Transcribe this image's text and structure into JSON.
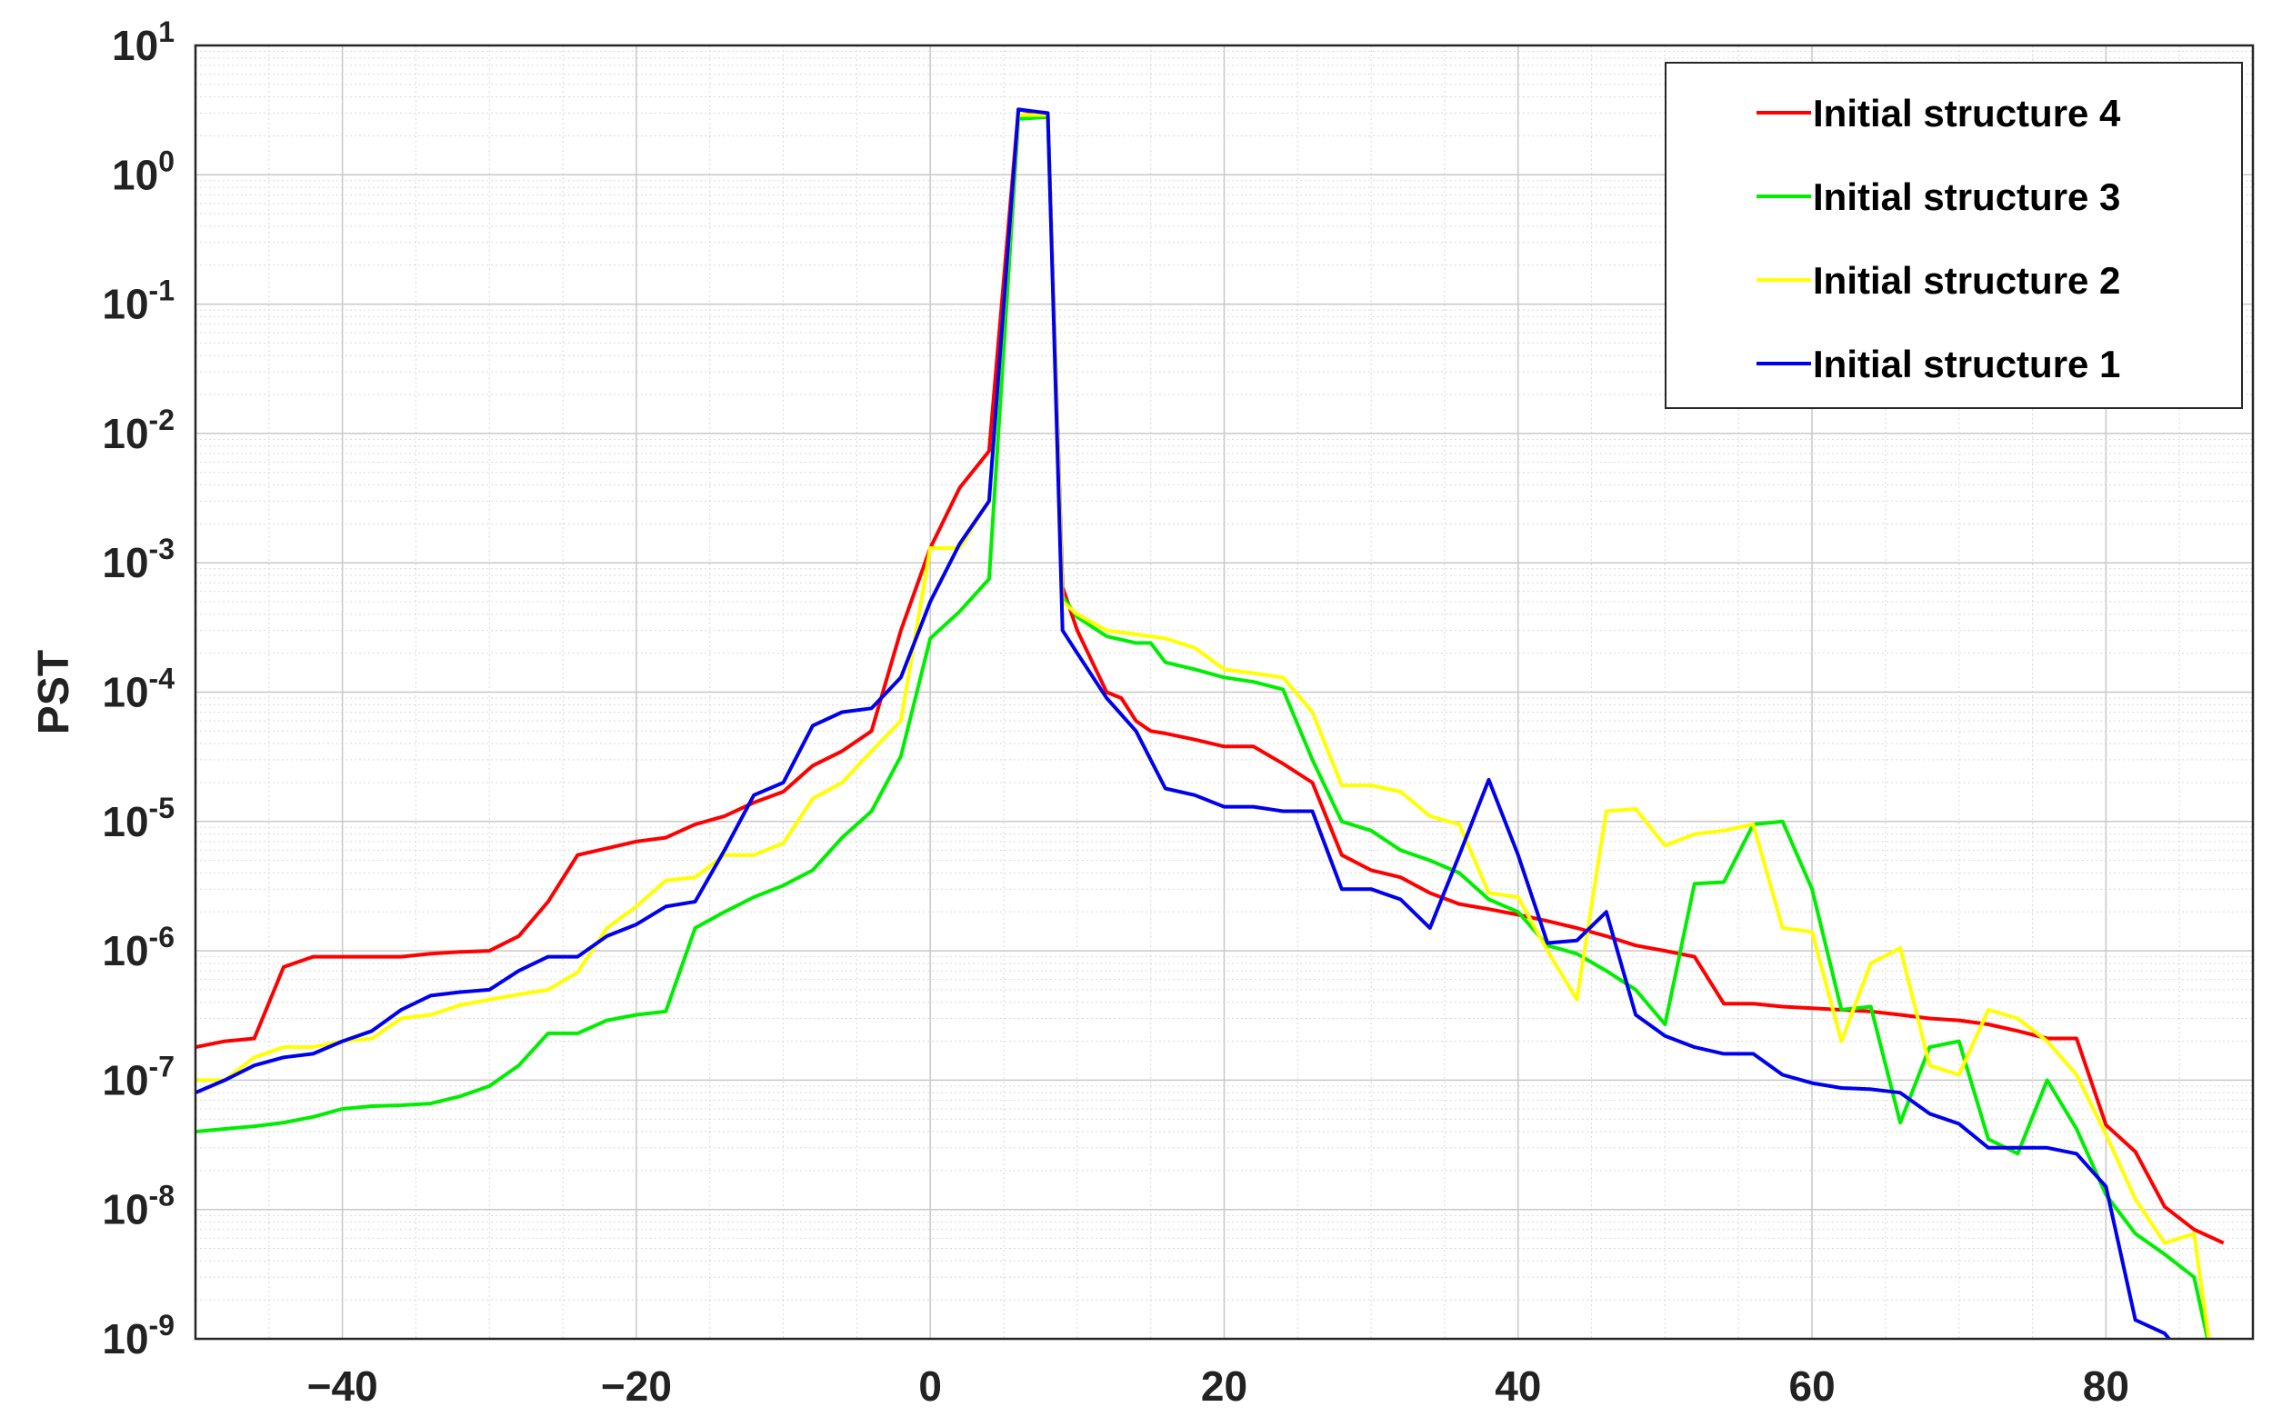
{
  "chart_data": {
    "type": "line",
    "title": "",
    "xlabel": "",
    "ylabel": "PST",
    "xlim": [
      -50,
      90
    ],
    "ylim": [
      1e-09,
      10
    ],
    "yscale": "log",
    "grid": true,
    "minor_grid": true,
    "legend_position": "top-right",
    "x_ticks": [
      -40,
      -20,
      0,
      20,
      40,
      60,
      80
    ],
    "x_tick_labels": [
      "−40",
      "−20",
      "0",
      "20",
      "40",
      "60",
      "80"
    ],
    "y_ticks": [
      1,
      0,
      -1,
      -2,
      -3,
      -4,
      -5,
      -6,
      -7,
      -8,
      -9
    ],
    "y_tick_base": "10",
    "y_tick_exponents": [
      "1",
      "0",
      "-1",
      "-2",
      "-3",
      "-4",
      "-5",
      "-6",
      "-7",
      "-8",
      "-9"
    ],
    "series": [
      {
        "name": "Initial structure 4",
        "color": "#ff0000",
        "points": [
          [
            -50,
            1.8e-07
          ],
          [
            -48,
            2e-07
          ],
          [
            -46,
            2.1e-07
          ],
          [
            -44,
            7.5e-07
          ],
          [
            -42,
            9e-07
          ],
          [
            -40,
            9e-07
          ],
          [
            -38,
            9e-07
          ],
          [
            -36,
            9e-07
          ],
          [
            -34,
            9.5e-07
          ],
          [
            -32,
            9.8e-07
          ],
          [
            -30,
            1e-06
          ],
          [
            -28,
            1.3e-06
          ],
          [
            -26,
            2.4e-06
          ],
          [
            -24,
            5.5e-06
          ],
          [
            -22,
            6.2e-06
          ],
          [
            -20,
            7e-06
          ],
          [
            -18,
            7.5e-06
          ],
          [
            -16,
            9.5e-06
          ],
          [
            -14,
            1.1e-05
          ],
          [
            -12,
            1.4e-05
          ],
          [
            -10,
            1.7e-05
          ],
          [
            -8,
            2.7e-05
          ],
          [
            -6,
            3.5e-05
          ],
          [
            -4,
            5e-05
          ],
          [
            -2,
            0.0003
          ],
          [
            0,
            0.0013
          ],
          [
            2,
            0.0038
          ],
          [
            4,
            0.0073
          ],
          [
            6,
            3.2
          ],
          [
            8,
            2.9
          ],
          [
            9,
            0.00065
          ],
          [
            10,
            0.0003
          ],
          [
            12,
            0.0001
          ],
          [
            13,
            9e-05
          ],
          [
            14,
            6e-05
          ],
          [
            15,
            5e-05
          ],
          [
            16,
            4.8e-05
          ],
          [
            18,
            4.3e-05
          ],
          [
            20,
            3.8e-05
          ],
          [
            22,
            3.8e-05
          ],
          [
            24,
            2.8e-05
          ],
          [
            26,
            2e-05
          ],
          [
            28,
            5.5e-06
          ],
          [
            30,
            4.2e-06
          ],
          [
            32,
            3.7e-06
          ],
          [
            34,
            2.8e-06
          ],
          [
            36,
            2.3e-06
          ],
          [
            38,
            2.1e-06
          ],
          [
            40,
            1.9e-06
          ],
          [
            42,
            1.7e-06
          ],
          [
            44,
            1.5e-06
          ],
          [
            46,
            1.3e-06
          ],
          [
            48,
            1.1e-06
          ],
          [
            50,
            1e-06
          ],
          [
            52,
            9e-07
          ],
          [
            54,
            3.9e-07
          ],
          [
            56,
            3.9e-07
          ],
          [
            58,
            3.7e-07
          ],
          [
            60,
            3.6e-07
          ],
          [
            62,
            3.5e-07
          ],
          [
            64,
            3.4e-07
          ],
          [
            66,
            3.2e-07
          ],
          [
            68,
            3e-07
          ],
          [
            70,
            2.9e-07
          ],
          [
            72,
            2.7e-07
          ],
          [
            74,
            2.4e-07
          ],
          [
            76,
            2.1e-07
          ],
          [
            78,
            2.1e-07
          ],
          [
            80,
            4.5e-08
          ],
          [
            82,
            2.8e-08
          ],
          [
            84,
            1.05e-08
          ],
          [
            86,
            7e-09
          ],
          [
            88,
            5.5e-09
          ]
        ]
      },
      {
        "name": "Initial structure 3",
        "color": "#00ee00",
        "points": [
          [
            -50,
            4e-08
          ],
          [
            -48,
            4.2e-08
          ],
          [
            -46,
            4.4e-08
          ],
          [
            -44,
            4.7e-08
          ],
          [
            -42,
            5.2e-08
          ],
          [
            -40,
            6e-08
          ],
          [
            -38,
            6.3e-08
          ],
          [
            -36,
            6.4e-08
          ],
          [
            -34,
            6.6e-08
          ],
          [
            -32,
            7.5e-08
          ],
          [
            -30,
            9e-08
          ],
          [
            -28,
            1.3e-07
          ],
          [
            -26,
            2.3e-07
          ],
          [
            -24,
            2.3e-07
          ],
          [
            -22,
            2.9e-07
          ],
          [
            -20,
            3.2e-07
          ],
          [
            -18,
            3.4e-07
          ],
          [
            -16,
            1.5e-06
          ],
          [
            -14,
            2e-06
          ],
          [
            -12,
            2.6e-06
          ],
          [
            -10,
            3.2e-06
          ],
          [
            -8,
            4.2e-06
          ],
          [
            -6,
            7.5e-06
          ],
          [
            -4,
            1.2e-05
          ],
          [
            -2,
            3.2e-05
          ],
          [
            0,
            0.00026
          ],
          [
            2,
            0.00042
          ],
          [
            4,
            0.00075
          ],
          [
            6,
            2.7
          ],
          [
            8,
            2.8
          ],
          [
            9,
            0.00055
          ],
          [
            10,
            0.00038
          ],
          [
            12,
            0.00027
          ],
          [
            14,
            0.00024
          ],
          [
            15,
            0.00024
          ],
          [
            16,
            0.00017
          ],
          [
            18,
            0.00015
          ],
          [
            20,
            0.00013
          ],
          [
            22,
            0.00012
          ],
          [
            24,
            0.000105
          ],
          [
            26,
            3e-05
          ],
          [
            28,
            1e-05
          ],
          [
            30,
            8.5e-06
          ],
          [
            32,
            6e-06
          ],
          [
            34,
            5e-06
          ],
          [
            36,
            4e-06
          ],
          [
            38,
            2.5e-06
          ],
          [
            40,
            2e-06
          ],
          [
            42,
            1.1e-06
          ],
          [
            44,
            9.5e-07
          ],
          [
            46,
            7e-07
          ],
          [
            48,
            5e-07
          ],
          [
            50,
            2.7e-07
          ],
          [
            52,
            3.3e-06
          ],
          [
            54,
            3.4e-06
          ],
          [
            56,
            9.5e-06
          ],
          [
            58,
            1e-05
          ],
          [
            60,
            3e-06
          ],
          [
            62,
            3.5e-07
          ],
          [
            64,
            3.7e-07
          ],
          [
            66,
            4.7e-08
          ],
          [
            68,
            1.8e-07
          ],
          [
            70,
            2e-07
          ],
          [
            72,
            3.5e-08
          ],
          [
            74,
            2.7e-08
          ],
          [
            76,
            1e-07
          ],
          [
            78,
            4.2e-08
          ],
          [
            80,
            1.3e-08
          ],
          [
            82,
            6.5e-09
          ],
          [
            84,
            4.5e-09
          ],
          [
            86,
            3e-09
          ],
          [
            87,
            9e-10
          ]
        ]
      },
      {
        "name": "Initial structure 2",
        "color": "#ffff00",
        "points": [
          [
            -50,
            1e-07
          ],
          [
            -48,
            1e-07
          ],
          [
            -46,
            1.5e-07
          ],
          [
            -44,
            1.8e-07
          ],
          [
            -42,
            1.8e-07
          ],
          [
            -40,
            2e-07
          ],
          [
            -38,
            2.1e-07
          ],
          [
            -36,
            3e-07
          ],
          [
            -34,
            3.2e-07
          ],
          [
            -32,
            3.8e-07
          ],
          [
            -30,
            4.2e-07
          ],
          [
            -28,
            4.6e-07
          ],
          [
            -26,
            5e-07
          ],
          [
            -24,
            6.8e-07
          ],
          [
            -22,
            1.5e-06
          ],
          [
            -20,
            2.2e-06
          ],
          [
            -18,
            3.5e-06
          ],
          [
            -16,
            3.7e-06
          ],
          [
            -14,
            5.5e-06
          ],
          [
            -12,
            5.5e-06
          ],
          [
            -10,
            6.8e-06
          ],
          [
            -8,
            1.5e-05
          ],
          [
            -6,
            2e-05
          ],
          [
            -4,
            3.5e-05
          ],
          [
            -2,
            6e-05
          ],
          [
            0,
            0.0013
          ],
          [
            2,
            0.0013
          ],
          [
            4,
            0.003
          ],
          [
            6,
            2.9
          ],
          [
            8,
            2.9
          ],
          [
            9,
            0.0005
          ],
          [
            10,
            0.0004
          ],
          [
            12,
            0.0003
          ],
          [
            14,
            0.00028
          ],
          [
            16,
            0.00026
          ],
          [
            18,
            0.00022
          ],
          [
            20,
            0.00015
          ],
          [
            22,
            0.00014
          ],
          [
            24,
            0.00013
          ],
          [
            26,
            7e-05
          ],
          [
            28,
            1.9e-05
          ],
          [
            30,
            1.9e-05
          ],
          [
            32,
            1.7e-05
          ],
          [
            34,
            1.1e-05
          ],
          [
            36,
            9.5e-06
          ],
          [
            38,
            2.8e-06
          ],
          [
            40,
            2.6e-06
          ],
          [
            42,
            1e-06
          ],
          [
            44,
            4.2e-07
          ],
          [
            46,
            1.2e-05
          ],
          [
            48,
            1.25e-05
          ],
          [
            50,
            6.5e-06
          ],
          [
            52,
            8e-06
          ],
          [
            54,
            8.5e-06
          ],
          [
            56,
            9.5e-06
          ],
          [
            58,
            1.5e-06
          ],
          [
            60,
            1.4e-06
          ],
          [
            62,
            2e-07
          ],
          [
            64,
            8e-07
          ],
          [
            66,
            1.05e-06
          ],
          [
            68,
            1.3e-07
          ],
          [
            70,
            1.1e-07
          ],
          [
            72,
            3.5e-07
          ],
          [
            74,
            3e-07
          ],
          [
            76,
            2e-07
          ],
          [
            78,
            1.1e-07
          ],
          [
            80,
            3.8e-08
          ],
          [
            82,
            1.2e-08
          ],
          [
            84,
            5.5e-09
          ],
          [
            86,
            6.5e-09
          ],
          [
            87,
            1e-09
          ]
        ]
      },
      {
        "name": "Initial structure 1",
        "color": "#0000ee",
        "points": [
          [
            -50,
            8e-08
          ],
          [
            -48,
            1e-07
          ],
          [
            -46,
            1.3e-07
          ],
          [
            -44,
            1.5e-07
          ],
          [
            -42,
            1.6e-07
          ],
          [
            -40,
            2e-07
          ],
          [
            -38,
            2.4e-07
          ],
          [
            -36,
            3.5e-07
          ],
          [
            -34,
            4.5e-07
          ],
          [
            -32,
            4.8e-07
          ],
          [
            -30,
            5e-07
          ],
          [
            -28,
            7e-07
          ],
          [
            -26,
            9e-07
          ],
          [
            -24,
            9e-07
          ],
          [
            -22,
            1.3e-06
          ],
          [
            -20,
            1.6e-06
          ],
          [
            -18,
            2.2e-06
          ],
          [
            -16,
            2.4e-06
          ],
          [
            -14,
            6e-06
          ],
          [
            -12,
            1.6e-05
          ],
          [
            -10,
            2e-05
          ],
          [
            -8,
            5.5e-05
          ],
          [
            -6,
            7e-05
          ],
          [
            -4,
            7.5e-05
          ],
          [
            -2,
            0.00013
          ],
          [
            0,
            0.0005
          ],
          [
            2,
            0.0014
          ],
          [
            4,
            0.003
          ],
          [
            6,
            3.2
          ],
          [
            8,
            3
          ],
          [
            9,
            0.0003
          ],
          [
            10,
            0.0002
          ],
          [
            12,
            9e-05
          ],
          [
            14,
            5e-05
          ],
          [
            16,
            1.8e-05
          ],
          [
            18,
            1.6e-05
          ],
          [
            20,
            1.3e-05
          ],
          [
            22,
            1.3e-05
          ],
          [
            24,
            1.2e-05
          ],
          [
            26,
            1.2e-05
          ],
          [
            28,
            3e-06
          ],
          [
            30,
            3e-06
          ],
          [
            32,
            2.5e-06
          ],
          [
            34,
            1.5e-06
          ],
          [
            36,
            5.5e-06
          ],
          [
            38,
            2.1e-05
          ],
          [
            40,
            5.5e-06
          ],
          [
            42,
            1.15e-06
          ],
          [
            44,
            1.2e-06
          ],
          [
            46,
            2e-06
          ],
          [
            48,
            3.2e-07
          ],
          [
            50,
            2.2e-07
          ],
          [
            52,
            1.8e-07
          ],
          [
            54,
            1.6e-07
          ],
          [
            56,
            1.6e-07
          ],
          [
            58,
            1.1e-07
          ],
          [
            60,
            9.5e-08
          ],
          [
            62,
            8.7e-08
          ],
          [
            64,
            8.5e-08
          ],
          [
            66,
            8e-08
          ],
          [
            68,
            5.5e-08
          ],
          [
            70,
            4.6e-08
          ],
          [
            72,
            3e-08
          ],
          [
            74,
            3e-08
          ],
          [
            76,
            3e-08
          ],
          [
            78,
            2.7e-08
          ],
          [
            80,
            1.5e-08
          ],
          [
            82,
            1.4e-09
          ],
          [
            84,
            1.1e-09
          ],
          [
            85,
            8e-10
          ]
        ]
      }
    ]
  }
}
